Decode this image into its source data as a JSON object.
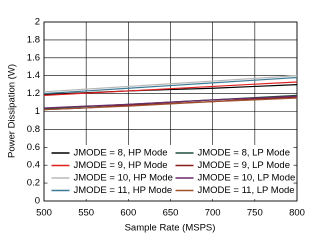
{
  "chart_data": {
    "type": "line",
    "xlabel": "Sample Rate (MSPS)",
    "ylabel": "Power Dissipation (W)",
    "x": [
      500,
      550,
      600,
      650,
      700,
      750,
      800
    ],
    "xlim": [
      500,
      800
    ],
    "xticks": [
      500,
      550,
      600,
      650,
      700,
      750,
      800
    ],
    "ylim": [
      0,
      2
    ],
    "yticks": [
      0,
      0.2,
      0.4,
      0.6,
      0.8,
      1,
      1.2,
      1.4,
      1.6,
      1.8,
      2
    ],
    "grid": true,
    "legend": "lower center",
    "series": [
      {
        "name": "JMODE = 8, HP Mode",
        "color": "#000000",
        "values": [
          1.19,
          1.21,
          1.23,
          1.245,
          1.26,
          1.28,
          1.3
        ]
      },
      {
        "name": "JMODE = 9, HP Mode",
        "color": "#e02020",
        "values": [
          1.18,
          1.205,
          1.23,
          1.255,
          1.28,
          1.305,
          1.33
        ]
      },
      {
        "name": "JMODE = 10, HP Mode",
        "color": "#b8b8b8",
        "values": [
          1.22,
          1.25,
          1.28,
          1.31,
          1.34,
          1.37,
          1.4
        ]
      },
      {
        "name": "JMODE = 11, HP Mode",
        "color": "#3c7a96",
        "values": [
          1.2,
          1.23,
          1.26,
          1.29,
          1.32,
          1.35,
          1.38
        ]
      },
      {
        "name": "JMODE = 8, LP Mode",
        "color": "#1f4e3a",
        "values": [
          1.03,
          1.055,
          1.08,
          1.105,
          1.13,
          1.155,
          1.18
        ]
      },
      {
        "name": "JMODE = 9, LP Mode",
        "color": "#8b1a1a",
        "values": [
          1.02,
          1.04,
          1.07,
          1.09,
          1.11,
          1.14,
          1.16
        ]
      },
      {
        "name": "JMODE = 10, LP Mode",
        "color": "#6a2c6a",
        "values": [
          1.04,
          1.06,
          1.08,
          1.105,
          1.13,
          1.15,
          1.17
        ]
      },
      {
        "name": "JMODE = 11, LP Mode",
        "color": "#a0522d",
        "values": [
          1.02,
          1.04,
          1.06,
          1.085,
          1.11,
          1.13,
          1.15
        ]
      }
    ]
  }
}
